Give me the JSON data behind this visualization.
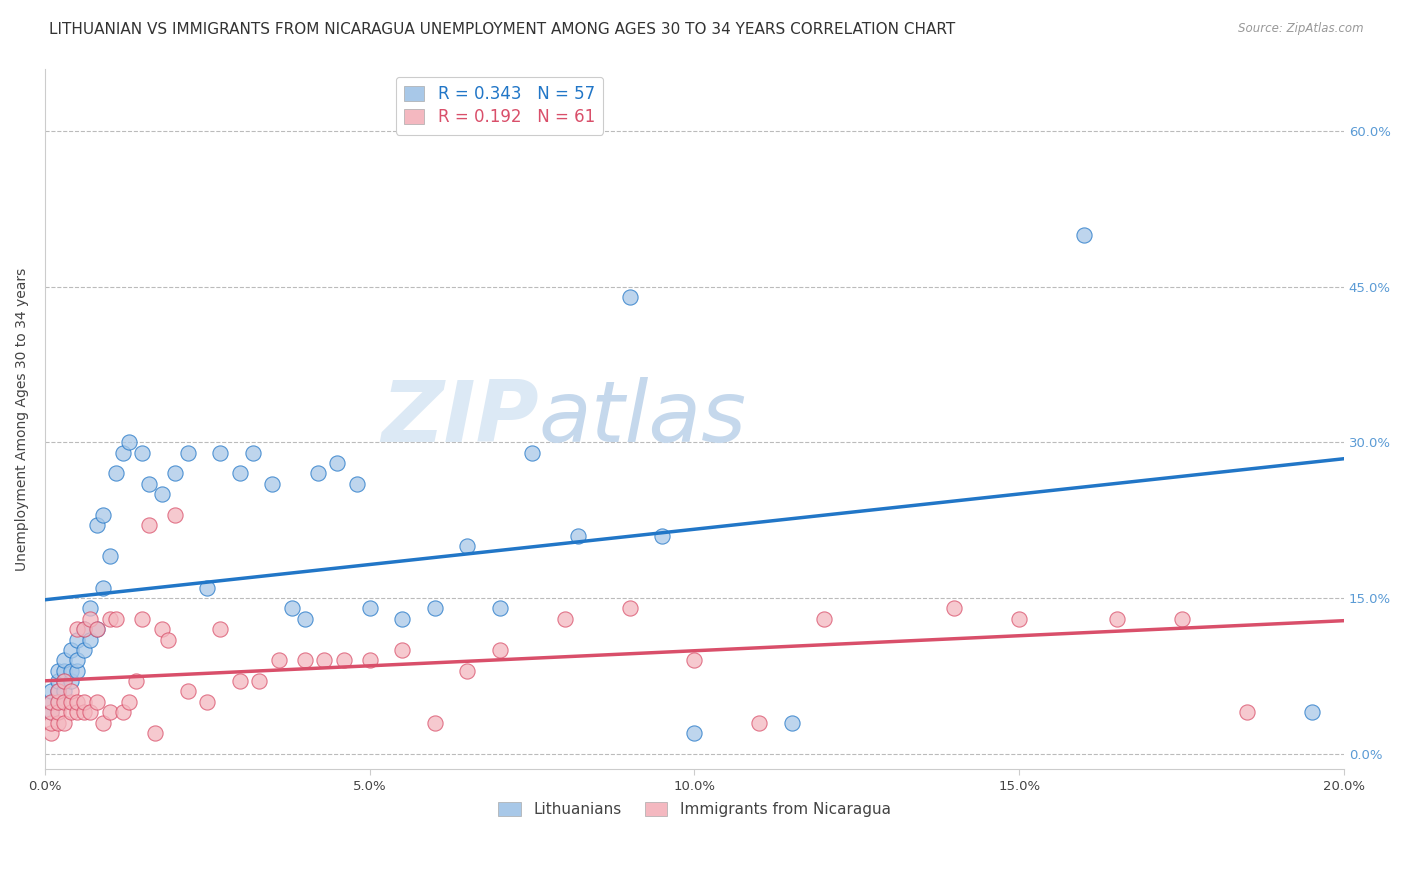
{
  "title": "LITHUANIAN VS IMMIGRANTS FROM NICARAGUA UNEMPLOYMENT AMONG AGES 30 TO 34 YEARS CORRELATION CHART",
  "source": "Source: ZipAtlas.com",
  "ylabel": "Unemployment Among Ages 30 to 34 years",
  "xlim": [
    0.0,
    0.2
  ],
  "ylim": [
    -0.015,
    0.66
  ],
  "xticks": [
    0.0,
    0.05,
    0.1,
    0.15,
    0.2
  ],
  "yticks": [
    0.0,
    0.15,
    0.3,
    0.45,
    0.6
  ],
  "ytick_labels_right": [
    "0.0%",
    "15.0%",
    "30.0%",
    "45.0%",
    "60.0%"
  ],
  "xtick_labels": [
    "0.0%",
    "5.0%",
    "10.0%",
    "15.0%",
    "20.0%"
  ],
  "blue_color": "#a8c8e8",
  "pink_color": "#f4b8c0",
  "blue_line_color": "#2176c7",
  "pink_line_color": "#d94f6a",
  "legend_label1": "Lithuanians",
  "legend_label2": "Immigrants from Nicaragua",
  "blue_R": "0.343",
  "blue_N": "57",
  "pink_R": "0.192",
  "pink_N": "61",
  "blue_x": [
    0.001,
    0.001,
    0.001,
    0.002,
    0.002,
    0.002,
    0.002,
    0.003,
    0.003,
    0.003,
    0.003,
    0.004,
    0.004,
    0.004,
    0.005,
    0.005,
    0.005,
    0.006,
    0.006,
    0.007,
    0.007,
    0.008,
    0.008,
    0.009,
    0.009,
    0.01,
    0.011,
    0.012,
    0.013,
    0.015,
    0.016,
    0.018,
    0.02,
    0.022,
    0.025,
    0.027,
    0.03,
    0.032,
    0.035,
    0.038,
    0.04,
    0.042,
    0.045,
    0.048,
    0.05,
    0.055,
    0.06,
    0.065,
    0.07,
    0.075,
    0.082,
    0.09,
    0.095,
    0.1,
    0.115,
    0.16,
    0.195
  ],
  "blue_y": [
    0.04,
    0.05,
    0.06,
    0.05,
    0.06,
    0.07,
    0.08,
    0.06,
    0.07,
    0.08,
    0.09,
    0.07,
    0.08,
    0.1,
    0.08,
    0.09,
    0.11,
    0.1,
    0.12,
    0.11,
    0.14,
    0.12,
    0.22,
    0.23,
    0.16,
    0.19,
    0.27,
    0.29,
    0.3,
    0.29,
    0.26,
    0.25,
    0.27,
    0.29,
    0.16,
    0.29,
    0.27,
    0.29,
    0.26,
    0.14,
    0.13,
    0.27,
    0.28,
    0.26,
    0.14,
    0.13,
    0.14,
    0.2,
    0.14,
    0.29,
    0.21,
    0.44,
    0.21,
    0.02,
    0.03,
    0.5,
    0.04
  ],
  "pink_x": [
    0.001,
    0.001,
    0.001,
    0.001,
    0.002,
    0.002,
    0.002,
    0.002,
    0.003,
    0.003,
    0.003,
    0.004,
    0.004,
    0.004,
    0.005,
    0.005,
    0.005,
    0.006,
    0.006,
    0.006,
    0.007,
    0.007,
    0.008,
    0.008,
    0.009,
    0.01,
    0.01,
    0.011,
    0.012,
    0.013,
    0.014,
    0.015,
    0.016,
    0.017,
    0.018,
    0.019,
    0.02,
    0.022,
    0.025,
    0.027,
    0.03,
    0.033,
    0.036,
    0.04,
    0.043,
    0.046,
    0.05,
    0.055,
    0.06,
    0.065,
    0.07,
    0.08,
    0.09,
    0.1,
    0.11,
    0.12,
    0.14,
    0.15,
    0.165,
    0.175,
    0.185
  ],
  "pink_y": [
    0.02,
    0.03,
    0.04,
    0.05,
    0.03,
    0.04,
    0.05,
    0.06,
    0.03,
    0.05,
    0.07,
    0.04,
    0.05,
    0.06,
    0.04,
    0.05,
    0.12,
    0.04,
    0.05,
    0.12,
    0.04,
    0.13,
    0.05,
    0.12,
    0.03,
    0.04,
    0.13,
    0.13,
    0.04,
    0.05,
    0.07,
    0.13,
    0.22,
    0.02,
    0.12,
    0.11,
    0.23,
    0.06,
    0.05,
    0.12,
    0.07,
    0.07,
    0.09,
    0.09,
    0.09,
    0.09,
    0.09,
    0.1,
    0.03,
    0.08,
    0.1,
    0.13,
    0.14,
    0.09,
    0.03,
    0.13,
    0.14,
    0.13,
    0.13,
    0.13,
    0.04
  ],
  "watermark_zip": "ZIP",
  "watermark_atlas": "atlas",
  "background_color": "#ffffff",
  "grid_color": "#bbbbbb",
  "title_fontsize": 11,
  "axis_fontsize": 10,
  "tick_fontsize": 9.5
}
